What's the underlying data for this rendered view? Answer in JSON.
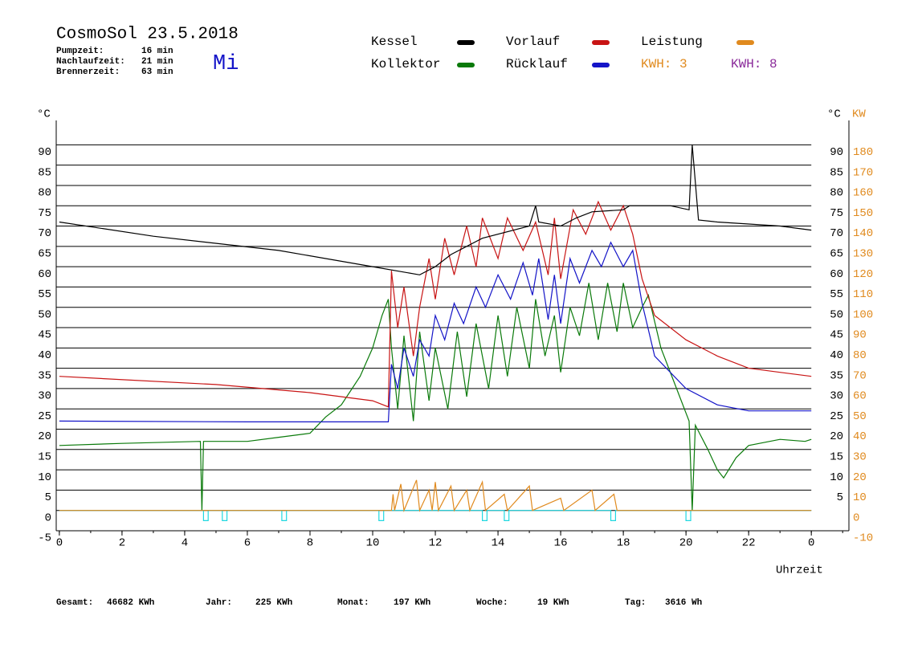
{
  "chart_data": {
    "type": "line",
    "title": "CosmoSol 23.5.2018",
    "weekday": "Mi",
    "info": [
      {
        "label": "Pumpzeit:",
        "value": "16 min"
      },
      {
        "label": "Nachlaufzeit:",
        "value": "21 min"
      },
      {
        "label": "Brennerzeit:",
        "value": "63 min"
      }
    ],
    "kwh_labels": [
      {
        "text": "KWH: 3",
        "color": "#e08a1e"
      },
      {
        "text": "KWH: 8",
        "color": "#8a2a9a"
      }
    ],
    "xlabel": "Uhrzeit",
    "ylabel": "°C",
    "y2label": "KW",
    "xlim": [
      -0.1,
      25.2
    ],
    "ylim": [
      -5,
      96
    ],
    "y2lim": [
      -10,
      192
    ],
    "xticks": [
      0,
      2,
      4,
      6,
      8,
      10,
      12,
      14,
      16,
      18,
      20,
      22,
      {
        "value": 24,
        "label": "0"
      }
    ],
    "yticks": [
      -5,
      0,
      5,
      10,
      15,
      20,
      25,
      30,
      35,
      40,
      45,
      50,
      55,
      60,
      65,
      70,
      75,
      80,
      85,
      90
    ],
    "yticks_right": [
      5,
      10,
      15,
      20,
      25,
      30,
      35,
      40,
      45,
      50,
      55,
      60,
      65,
      70,
      75,
      80,
      85,
      90
    ],
    "y2ticks": [
      -10,
      0,
      10,
      20,
      30,
      40,
      50,
      60,
      70,
      80,
      90,
      100,
      110,
      120,
      130,
      140,
      150,
      160,
      170,
      180
    ],
    "grid": true,
    "series": [
      {
        "name": "Kessel",
        "color": "#000000",
        "x": [
          0,
          3,
          7,
          10,
          11.5,
          12,
          12.5,
          13.5,
          14.5,
          15,
          15.2,
          15.3,
          16,
          16.5,
          17,
          18,
          18.2,
          19.5,
          20.1,
          20.2,
          20.4,
          21,
          23,
          24
        ],
        "values": [
          71,
          67.5,
          64,
          60,
          58,
          60,
          63,
          67,
          69,
          70,
          75,
          71,
          70,
          72,
          73.5,
          74,
          75,
          75,
          74,
          90,
          71.5,
          71,
          70,
          69
        ]
      },
      {
        "name": "Kollektor",
        "color": "#0a7a0a",
        "x": [
          0,
          2,
          4.5,
          4.55,
          4.6,
          6,
          7,
          8,
          8.5,
          9,
          9.6,
          10,
          10.3,
          10.5,
          10.6,
          10.8,
          11,
          11.3,
          11.5,
          11.8,
          12,
          12.4,
          12.7,
          13,
          13.3,
          13.7,
          14,
          14.3,
          14.6,
          15,
          15.2,
          15.5,
          15.8,
          16,
          16.3,
          16.6,
          16.9,
          17.2,
          17.5,
          17.8,
          18,
          18.3,
          18.6,
          18.8,
          19.2,
          19.7,
          20,
          20.1,
          20.2,
          20.3,
          20.7,
          21,
          21.2,
          21.6,
          22,
          23,
          23.8,
          24
        ],
        "values": [
          16,
          16.5,
          17,
          0,
          17,
          17,
          18,
          19,
          23,
          26,
          33,
          40,
          48,
          52,
          40,
          25,
          43,
          22,
          44,
          27,
          40,
          25,
          44,
          28,
          46,
          30,
          48,
          33,
          50,
          35,
          52,
          38,
          48,
          34,
          50,
          43,
          56,
          42,
          56,
          44,
          56,
          45,
          50,
          53,
          40,
          30,
          24,
          22,
          0,
          21,
          15,
          10,
          8,
          13,
          16,
          17.5,
          17,
          17.5
        ]
      },
      {
        "name": "Vorlauf",
        "color": "#c81414",
        "x": [
          0,
          5,
          8,
          10,
          10.5,
          10.6,
          10.8,
          11,
          11.3,
          11.5,
          11.8,
          12,
          12.3,
          12.6,
          13,
          13.3,
          13.5,
          14,
          14.3,
          14.8,
          15.2,
          15.6,
          15.8,
          16,
          16.4,
          16.8,
          17.2,
          17.6,
          18,
          18.3,
          18.6,
          19,
          20,
          21,
          22,
          23,
          24
        ],
        "values": [
          33,
          31,
          29,
          27,
          25.5,
          59,
          45,
          55,
          38,
          50,
          62,
          52,
          67,
          58,
          70,
          60,
          72,
          62,
          72,
          64,
          71,
          58,
          72,
          57,
          74,
          68,
          76,
          69,
          75,
          68,
          57,
          48,
          42,
          38,
          35,
          34,
          33
        ]
      },
      {
        "name": "Rücklauf",
        "color": "#1414c8",
        "x": [
          0,
          6,
          10.5,
          10.6,
          10.8,
          11,
          11.3,
          11.5,
          11.8,
          12,
          12.3,
          12.6,
          12.9,
          13.3,
          13.6,
          14,
          14.4,
          14.8,
          15.1,
          15.3,
          15.6,
          15.8,
          16,
          16.3,
          16.6,
          17,
          17.3,
          17.6,
          18,
          18.3,
          18.6,
          19,
          20,
          21,
          22,
          24
        ],
        "values": [
          22,
          21.8,
          21.8,
          36,
          30,
          40,
          33,
          42,
          38,
          48,
          42,
          51,
          46,
          55,
          50,
          58,
          52,
          61,
          53,
          62,
          47,
          58,
          46,
          62,
          56,
          64,
          60,
          66,
          60,
          64,
          51,
          38,
          30,
          26,
          24.5,
          24.5
        ]
      },
      {
        "name": "Leistung",
        "color": "#e08a1e",
        "axis": "y2",
        "x": [
          0,
          10.6,
          10.65,
          10.7,
          10.9,
          11,
          11.4,
          11.5,
          11.8,
          11.9,
          12,
          12.1,
          12.5,
          12.6,
          13,
          13.1,
          13.5,
          13.6,
          14.2,
          14.3,
          15,
          15.1,
          16,
          16.1,
          17,
          17.1,
          17.7,
          17.8,
          24
        ],
        "values": [
          0,
          0,
          8,
          0,
          13,
          0,
          15,
          0,
          10,
          0,
          14,
          0,
          12,
          0,
          10,
          0,
          14,
          0,
          8,
          0,
          12,
          0,
          6,
          0,
          10,
          0,
          8,
          0,
          0
        ]
      },
      {
        "color": "#20d8e0",
        "x": [
          0,
          4.6,
          4.6,
          4.75,
          4.75,
          5.2,
          5.2,
          5.35,
          5.35,
          7.1,
          7.1,
          7.25,
          7.25,
          10.2,
          10.2,
          10.35,
          10.35,
          13.5,
          13.5,
          13.65,
          13.65,
          14.2,
          14.2,
          14.35,
          14.35,
          17.6,
          17.6,
          17.75,
          17.75,
          20.0,
          20.0,
          20.15,
          20.15,
          24
        ],
        "values": [
          0,
          0,
          -2.5,
          -2.5,
          0,
          0,
          -2.5,
          -2.5,
          0,
          0,
          -2.5,
          -2.5,
          0,
          0,
          -2.5,
          -2.5,
          0,
          0,
          -2.5,
          -2.5,
          0,
          0,
          -2.5,
          -2.5,
          0,
          0,
          -2.5,
          -2.5,
          0,
          0,
          -2.5,
          -2.5,
          0,
          0
        ]
      }
    ],
    "footer": [
      {
        "label": "Gesamt:",
        "value": "46682 KWh"
      },
      {
        "label": "Jahr:",
        "value": "225 KWh"
      },
      {
        "label": "Monat:",
        "value": "197 KWh"
      },
      {
        "label": "Woche:",
        "value": "19 KWh"
      },
      {
        "label": "Tag:",
        "value": "3616 Wh"
      }
    ]
  }
}
